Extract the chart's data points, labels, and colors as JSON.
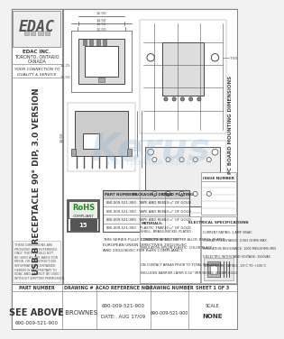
{
  "title": "USB-B RECEPTACLE 90° DIP, 3.0 VERSION",
  "part_number": "690-009-521-900",
  "company": "EDAC INC.",
  "tagline": "YOUR CONNECTION TO QUALITY & SERVICE",
  "drawing_number": "690-009-521-900",
  "drawn_by": "F BROWNES",
  "date": "AUG 17/09",
  "sheet": "SHEET 1 OF 3",
  "scale": "NONE",
  "acao_ref_no": "690-009-521-900",
  "pc_board_label": "PC BOARD MOUNTING DIMENSIONS",
  "headers": [
    "PART NUMBERS",
    "PACKAGING DETAIL",
    "GOLD PLATING"
  ],
  "table_rows": [
    [
      "690-009-521-900",
      "TAPE AND REEL",
      "19 u\" OF GOLD"
    ],
    [
      "690-009-521-900",
      "TAPE AND REEL",
      "30 u\" OF GOLD"
    ],
    [
      "690-009-521-900",
      "TAPE AND REEL",
      "30 u\" OF GOLD"
    ],
    [
      "690-009-521-900",
      "PLASTIC TRAY",
      "30 u\" OF GOLD"
    ]
  ],
  "compliance_text": "THIS SERIES FULLY CONFORMS TO THE\nEUROPEAN UNION DIRECTIVES 2002/95/EC\nAND 2002/96/EC FOR RoHS COMPLIANCY.",
  "electrical_specs": [
    "ELECTRICAL SPECIFICATIONS",
    "CURRENT RATING: 1 AMP 30VAC",
    "CONTACT RESISTANCE: 0.003 OHMS MAX.",
    "INSULATION RESISTANCE: 1000 MEGOHMS MIN",
    "DIELECTRIC WITHSTAND VOLTAGE: 1500VAC",
    "TEMPERATURE RATING: -25°C TO +105°C"
  ],
  "materials": [
    "MATERIALS:",
    "SHELL: BRASS, NICKEL PLATED",
    "CONTACTS: BRASS, COPPER ALLOY, BERGS. PLATED",
    "INSULATOR: NYLON PLASTIC, COLOR BLACK",
    "",
    "ON CONTACT AREAS PRIOR TO TOTAL THICKNESS",
    "INCLUDES BARRIER LAYER 0.5U\" MIN NICKEL UNDER GOLD."
  ],
  "notes_text": "THESE DIMENSIONS ARE PROVIDED\nFOR REFERENCE ONLY...",
  "bg": "#f2f2f2",
  "white": "#ffffff",
  "bc": "#888888",
  "tc": "#333333",
  "dim_c": "#555555",
  "wm_c": "#8ab4d4"
}
